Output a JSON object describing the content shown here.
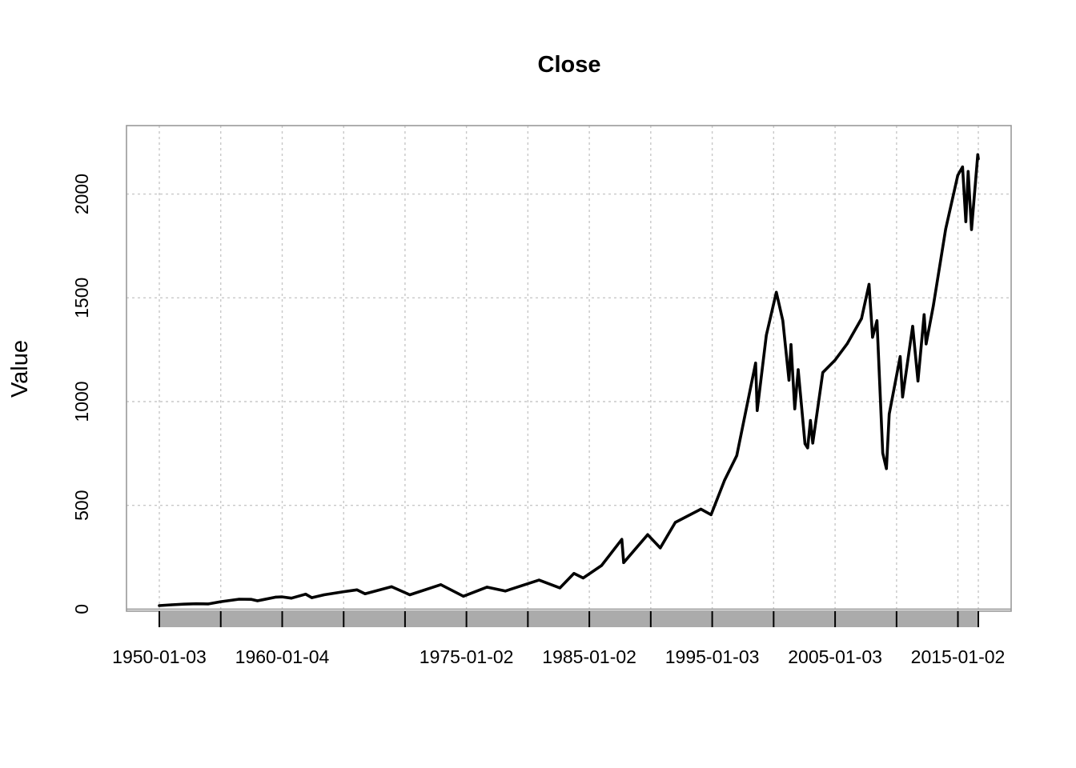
{
  "chart_data": {
    "type": "line",
    "title": "Close",
    "xlabel": "",
    "ylabel": "Value",
    "grid": true,
    "x_range": [
      "1950-01-03",
      "2016-08-31"
    ],
    "ylim": [
      -10,
      2330
    ],
    "y_ticks": [
      0,
      500,
      1000,
      1500,
      2000
    ],
    "x_tick_labels": [
      "1950-01-03",
      "1960-01-04",
      "1975-01-02",
      "1985-01-02",
      "1995-01-03",
      "2005-01-03",
      "2015-01-02"
    ],
    "x_tick_marks": [
      "1950-01-03",
      "1955-01-03",
      "1960-01-04",
      "1965-01-04",
      "1970-01-02",
      "1975-01-02",
      "1980-01-02",
      "1985-01-02",
      "1990-01-02",
      "1995-01-03",
      "2000-01-03",
      "2005-01-03",
      "2010-01-04",
      "2015-01-02",
      "2016-08-31"
    ],
    "series": [
      {
        "values": [
          [
            "1950-01-03",
            17
          ],
          [
            "1951-01-02",
            21
          ],
          [
            "1952-01-02",
            24
          ],
          [
            "1953-01-02",
            26
          ],
          [
            "1954-01-04",
            25
          ],
          [
            "1955-01-03",
            36
          ],
          [
            "1956-07-02",
            48
          ],
          [
            "1957-07-01",
            47
          ],
          [
            "1957-12-31",
            40
          ],
          [
            "1958-06-02",
            45
          ],
          [
            "1959-07-01",
            58
          ],
          [
            "1960-01-04",
            59
          ],
          [
            "1960-10-03",
            53
          ],
          [
            "1961-12-01",
            72
          ],
          [
            "1962-06-01",
            55
          ],
          [
            "1963-06-03",
            69
          ],
          [
            "1965-01-04",
            84
          ],
          [
            "1966-02-01",
            93
          ],
          [
            "1966-10-03",
            74
          ],
          [
            "1968-11-29",
            108
          ],
          [
            "1970-05-26",
            69
          ],
          [
            "1972-12-01",
            118
          ],
          [
            "1974-10-03",
            62
          ],
          [
            "1976-09-01",
            106
          ],
          [
            "1978-03-01",
            87
          ],
          [
            "1980-11-28",
            140
          ],
          [
            "1982-08-12",
            102
          ],
          [
            "1983-10-03",
            172
          ],
          [
            "1984-07-02",
            150
          ],
          [
            "1986-01-02",
            210
          ],
          [
            "1987-08-25",
            336
          ],
          [
            "1987-10-19",
            224
          ],
          [
            "1989-10-02",
            359
          ],
          [
            "1990-10-11",
            295
          ],
          [
            "1992-01-02",
            418
          ],
          [
            "1994-02-01",
            482
          ],
          [
            "1994-12-01",
            455
          ],
          [
            "1996-01-02",
            620
          ],
          [
            "1997-01-02",
            740
          ],
          [
            "1998-07-17",
            1186
          ],
          [
            "1998-09-01",
            957
          ],
          [
            "1999-06-01",
            1320
          ],
          [
            "2000-03-24",
            1527
          ],
          [
            "2000-10-02",
            1390
          ],
          [
            "2001-04-04",
            1103
          ],
          [
            "2001-06-01",
            1275
          ],
          [
            "2001-09-21",
            965
          ],
          [
            "2002-01-02",
            1154
          ],
          [
            "2002-07-23",
            797
          ],
          [
            "2002-10-09",
            777
          ],
          [
            "2003-01-02",
            909
          ],
          [
            "2003-03-11",
            800
          ],
          [
            "2004-01-02",
            1140
          ],
          [
            "2005-01-03",
            1200
          ],
          [
            "2006-01-03",
            1280
          ],
          [
            "2007-02-27",
            1400
          ],
          [
            "2007-10-09",
            1565
          ],
          [
            "2008-01-22",
            1310
          ],
          [
            "2008-06-02",
            1390
          ],
          [
            "2008-11-20",
            752
          ],
          [
            "2009-03-09",
            677
          ],
          [
            "2009-06-01",
            940
          ],
          [
            "2010-04-23",
            1217
          ],
          [
            "2010-07-02",
            1022
          ],
          [
            "2011-04-29",
            1363
          ],
          [
            "2011-10-03",
            1099
          ],
          [
            "2012-04-02",
            1419
          ],
          [
            "2012-06-01",
            1278
          ],
          [
            "2013-01-02",
            1462
          ],
          [
            "2014-01-02",
            1831
          ],
          [
            "2014-12-29",
            2090
          ],
          [
            "2015-05-21",
            2131
          ],
          [
            "2015-08-25",
            1867
          ],
          [
            "2015-11-03",
            2109
          ],
          [
            "2016-02-11",
            1829
          ],
          [
            "2016-08-15",
            2190
          ],
          [
            "2016-08-31",
            2170
          ]
        ]
      }
    ]
  }
}
